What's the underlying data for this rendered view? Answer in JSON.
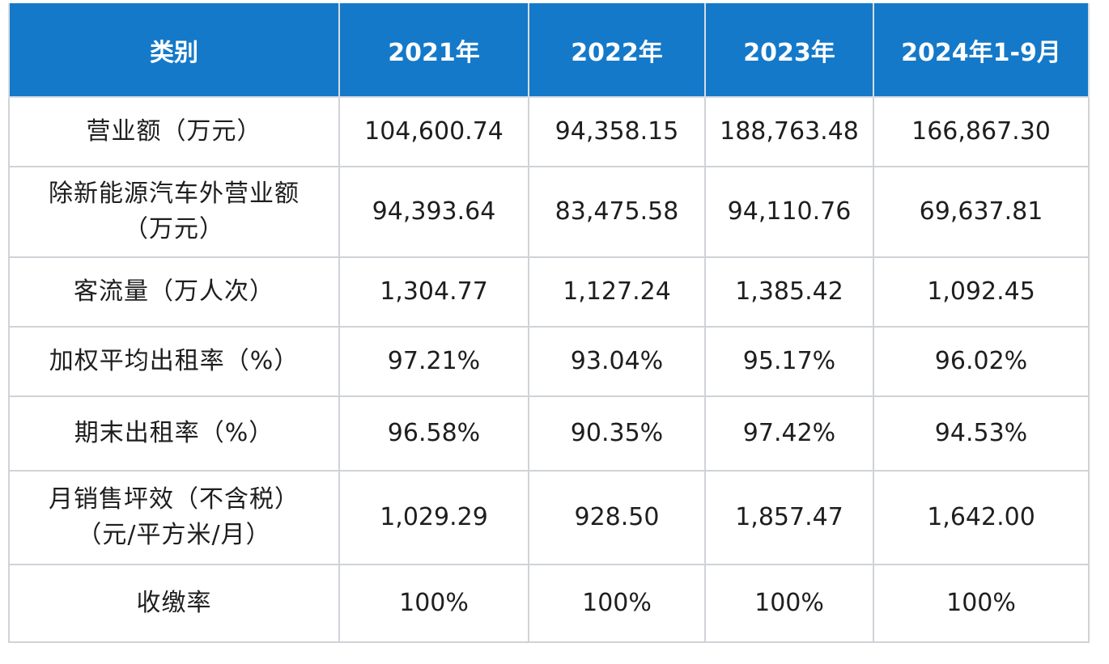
{
  "table": {
    "headers": [
      "类别",
      "2021年",
      "2022年",
      "2023年",
      "2024年1-9月"
    ],
    "rows": [
      {
        "label_lines": [
          "营业额（万元）"
        ],
        "values": [
          "104,600.74",
          "94,358.15",
          "188,763.48",
          "166,867.30"
        ]
      },
      {
        "label_lines": [
          "除新能源汽车外营业额",
          "（万元）"
        ],
        "values": [
          "94,393.64",
          "83,475.58",
          "94,110.76",
          "69,637.81"
        ]
      },
      {
        "label_lines": [
          "客流量（万人次）"
        ],
        "values": [
          "1,304.77",
          "1,127.24",
          "1,385.42",
          "1,092.45"
        ]
      },
      {
        "label_lines": [
          "加权平均出租率（%）"
        ],
        "values": [
          "97.21%",
          "93.04%",
          "95.17%",
          "96.02%"
        ]
      },
      {
        "label_lines": [
          "期末出租率（%）"
        ],
        "values": [
          "96.58%",
          "90.35%",
          "97.42%",
          "94.53%"
        ]
      },
      {
        "label_lines": [
          "月销售坪效（不含税）",
          "（元/平方米/月）"
        ],
        "values": [
          "1,029.29",
          "928.50",
          "1,857.47",
          "1,642.00"
        ]
      },
      {
        "label_lines": [
          "收缴率"
        ],
        "values": [
          "100%",
          "100%",
          "100%",
          "100%"
        ]
      }
    ]
  },
  "colors": {
    "header_bg": "#1479c9",
    "header_text": "#ffffff",
    "grid": "#cfd3d8",
    "body_text": "#1e1e1e"
  }
}
